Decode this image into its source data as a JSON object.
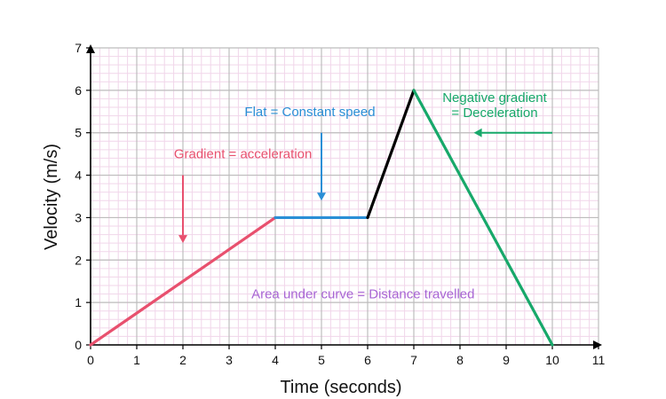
{
  "chart_data": {
    "type": "line",
    "title": "",
    "xlabel": "Time (seconds)",
    "ylabel": "Velocity (m/s)",
    "xlim": [
      0,
      11
    ],
    "ylim": [
      0,
      7
    ],
    "x_ticks": [
      0,
      1,
      2,
      3,
      4,
      5,
      6,
      7,
      8,
      9,
      10,
      11
    ],
    "y_ticks": [
      0,
      1,
      2,
      3,
      4,
      5,
      6,
      7
    ],
    "grid": true,
    "minor_grid": true,
    "colors": {
      "acceleration": "#e8506e",
      "constant": "#2a8fd6",
      "rise": "#000000",
      "deceleration": "#17a86a",
      "area_note": "#a865d4",
      "major_grid": "#bdbdbd",
      "minor_grid": "#f1d6ea"
    },
    "series": [
      {
        "color_key": "acceleration",
        "x": [
          0,
          4
        ],
        "y": [
          0,
          3
        ]
      },
      {
        "color_key": "constant",
        "x": [
          4,
          6
        ],
        "y": [
          3,
          3
        ]
      },
      {
        "color_key": "rise",
        "x": [
          6,
          7
        ],
        "y": [
          3,
          6
        ]
      },
      {
        "color_key": "deceleration",
        "x": [
          7,
          10
        ],
        "y": [
          6,
          0
        ]
      }
    ],
    "annotations": [
      {
        "id": "gradient",
        "lines": [
          "Gradient = acceleration"
        ],
        "color_key": "acceleration",
        "x": 3.3,
        "y": 4.5,
        "arrow": {
          "from": [
            2,
            4
          ],
          "to": [
            2,
            2.4
          ]
        }
      },
      {
        "id": "flat",
        "lines": [
          "Flat = Constant speed"
        ],
        "color_key": "constant",
        "x": 4.75,
        "y": 5.5,
        "arrow": {
          "from": [
            5,
            5
          ],
          "to": [
            5,
            3.4
          ]
        }
      },
      {
        "id": "negative",
        "lines": [
          "Negative gradient",
          "= Deceleration"
        ],
        "color_key": "deceleration",
        "x": 8.75,
        "y": 5.65,
        "arrow": {
          "from": [
            10,
            5
          ],
          "to": [
            8.3,
            5
          ]
        }
      },
      {
        "id": "area",
        "lines": [
          "Area under curve = Distance travelled"
        ],
        "color_key": "area_note",
        "x": 5.9,
        "y": 1.2
      }
    ]
  }
}
